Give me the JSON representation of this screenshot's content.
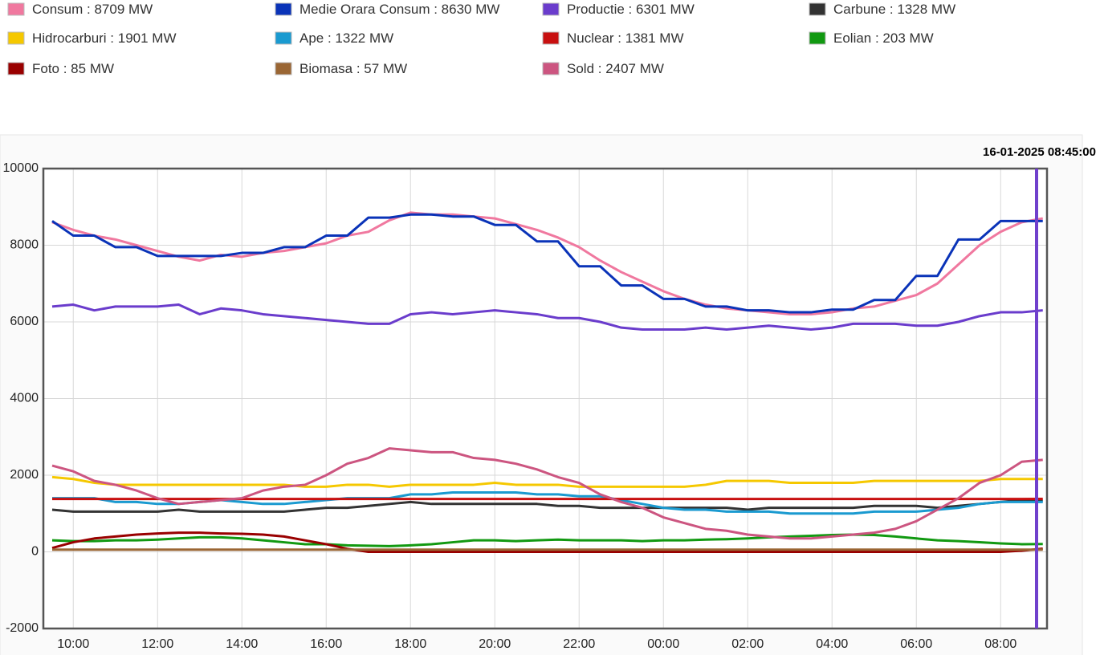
{
  "chart_data": {
    "type": "line",
    "annotation": "16-01-2025 08:45:00",
    "categories": [
      null,
      "10:00",
      null,
      null,
      null,
      "12:00",
      null,
      null,
      null,
      "14:00",
      null,
      null,
      null,
      "16:00",
      null,
      null,
      null,
      "18:00",
      null,
      null,
      null,
      "20:00",
      null,
      null,
      null,
      "22:00",
      null,
      null,
      null,
      "00:00",
      null,
      null,
      null,
      "02:00",
      null,
      null,
      null,
      "04:00",
      null,
      null,
      null,
      "06:00",
      null,
      null,
      null,
      "08:00",
      null,
      null
    ],
    "ylim": [
      -2000,
      10000
    ],
    "yticks": [
      -2000,
      0,
      2000,
      4000,
      6000,
      8000,
      10000
    ],
    "grid": true,
    "series": [
      {
        "name": "Consum : 8709 MW",
        "color": "#f0789f",
        "values": [
          8600,
          8400,
          8250,
          8150,
          8000,
          7850,
          7700,
          7600,
          7750,
          7700,
          7800,
          7850,
          7950,
          8050,
          8250,
          8350,
          8650,
          8850,
          8800,
          8800,
          8750,
          8700,
          8550,
          8400,
          8200,
          7950,
          7600,
          7300,
          7050,
          6800,
          6600,
          6450,
          6350,
          6300,
          6250,
          6200,
          6200,
          6250,
          6350,
          6400,
          6550,
          6700,
          7000,
          7500,
          8000,
          8350,
          8600,
          8700
        ]
      },
      {
        "name": "Medie Orara Consum : 8630 MW",
        "color": "#0a33b8",
        "values": [
          8630,
          8250,
          8250,
          7950,
          7950,
          7720,
          7720,
          7720,
          7720,
          7800,
          7800,
          7950,
          7950,
          8250,
          8250,
          8720,
          8720,
          8800,
          8800,
          8750,
          8750,
          8530,
          8530,
          8100,
          8100,
          7450,
          7450,
          6950,
          6950,
          6600,
          6600,
          6400,
          6400,
          6300,
          6300,
          6250,
          6250,
          6320,
          6320,
          6570,
          6570,
          7200,
          7200,
          8150,
          8150,
          8630,
          8630,
          8630
        ]
      },
      {
        "name": "Productie : 6301 MW",
        "color": "#6a3ccc",
        "values": [
          6400,
          6450,
          6300,
          6400,
          6400,
          6400,
          6450,
          6200,
          6350,
          6300,
          6200,
          6150,
          6100,
          6050,
          6000,
          5950,
          5950,
          6200,
          6250,
          6200,
          6250,
          6300,
          6250,
          6200,
          6100,
          6100,
          6000,
          5850,
          5800,
          5800,
          5800,
          5850,
          5800,
          5850,
          5900,
          5850,
          5800,
          5850,
          5950,
          5950,
          5950,
          5900,
          5900,
          6000,
          6150,
          6250,
          6250,
          6300
        ]
      },
      {
        "name": "Carbune : 1328 MW",
        "color": "#333333",
        "values": [
          1100,
          1050,
          1050,
          1050,
          1050,
          1050,
          1100,
          1050,
          1050,
          1050,
          1050,
          1050,
          1100,
          1150,
          1150,
          1200,
          1250,
          1300,
          1250,
          1250,
          1250,
          1250,
          1250,
          1250,
          1200,
          1200,
          1150,
          1150,
          1150,
          1150,
          1150,
          1150,
          1150,
          1100,
          1150,
          1150,
          1150,
          1150,
          1150,
          1200,
          1200,
          1200,
          1150,
          1200,
          1250,
          1300,
          1350,
          1330
        ]
      },
      {
        "name": "Hidrocarburi : 1901 MW",
        "color": "#f5c800",
        "values": [
          1950,
          1900,
          1800,
          1750,
          1750,
          1750,
          1750,
          1750,
          1750,
          1750,
          1750,
          1750,
          1700,
          1700,
          1750,
          1750,
          1700,
          1750,
          1750,
          1750,
          1750,
          1800,
          1750,
          1750,
          1750,
          1700,
          1700,
          1700,
          1700,
          1700,
          1700,
          1750,
          1850,
          1850,
          1850,
          1800,
          1800,
          1800,
          1800,
          1850,
          1850,
          1850,
          1850,
          1850,
          1850,
          1900,
          1900,
          1900
        ]
      },
      {
        "name": "Ape : 1322 MW",
        "color": "#1a9ad0",
        "values": [
          1400,
          1400,
          1400,
          1300,
          1300,
          1250,
          1250,
          1300,
          1350,
          1300,
          1250,
          1250,
          1300,
          1350,
          1400,
          1400,
          1400,
          1500,
          1500,
          1550,
          1550,
          1550,
          1550,
          1500,
          1500,
          1450,
          1450,
          1350,
          1250,
          1150,
          1100,
          1100,
          1050,
          1050,
          1050,
          1000,
          1000,
          1000,
          1000,
          1050,
          1050,
          1050,
          1100,
          1150,
          1250,
          1300,
          1300,
          1300
        ]
      },
      {
        "name": "Nuclear : 1381 MW",
        "color": "#c81010",
        "values": [
          1380,
          1380,
          1380,
          1380,
          1380,
          1380,
          1380,
          1380,
          1380,
          1380,
          1380,
          1380,
          1380,
          1380,
          1380,
          1380,
          1380,
          1380,
          1380,
          1380,
          1380,
          1380,
          1380,
          1380,
          1380,
          1380,
          1380,
          1380,
          1380,
          1380,
          1380,
          1380,
          1380,
          1380,
          1380,
          1380,
          1380,
          1380,
          1380,
          1380,
          1380,
          1380,
          1380,
          1380,
          1380,
          1380,
          1380,
          1381
        ]
      },
      {
        "name": "Eolian : 203 MW",
        "color": "#119911",
        "values": [
          300,
          280,
          280,
          300,
          300,
          320,
          350,
          380,
          380,
          350,
          300,
          250,
          200,
          200,
          170,
          160,
          150,
          170,
          200,
          250,
          300,
          300,
          280,
          300,
          320,
          300,
          300,
          300,
          280,
          300,
          300,
          320,
          330,
          350,
          380,
          400,
          420,
          440,
          450,
          440,
          400,
          350,
          300,
          280,
          250,
          220,
          200,
          203
        ]
      },
      {
        "name": "Foto : 85 MW",
        "color": "#990000",
        "values": [
          100,
          250,
          350,
          400,
          450,
          480,
          500,
          500,
          480,
          470,
          450,
          400,
          300,
          200,
          80,
          0,
          0,
          0,
          0,
          0,
          0,
          0,
          0,
          0,
          0,
          0,
          0,
          0,
          0,
          0,
          0,
          0,
          0,
          0,
          0,
          0,
          0,
          0,
          0,
          0,
          0,
          0,
          0,
          0,
          0,
          0,
          30,
          85
        ]
      },
      {
        "name": "Biomasa : 57 MW",
        "color": "#9a6634",
        "values": [
          57,
          57,
          57,
          57,
          57,
          57,
          57,
          57,
          57,
          57,
          57,
          57,
          57,
          57,
          57,
          57,
          57,
          57,
          57,
          57,
          57,
          57,
          57,
          57,
          57,
          57,
          57,
          57,
          57,
          57,
          57,
          57,
          57,
          57,
          57,
          57,
          57,
          57,
          57,
          57,
          57,
          57,
          57,
          57,
          57,
          57,
          57,
          57
        ]
      },
      {
        "name": "Sold : 2407 MW",
        "color": "#cc5580",
        "values": [
          2250,
          2100,
          1850,
          1750,
          1600,
          1400,
          1250,
          1300,
          1350,
          1400,
          1600,
          1700,
          1750,
          2000,
          2300,
          2450,
          2700,
          2650,
          2600,
          2600,
          2450,
          2400,
          2300,
          2150,
          1950,
          1800,
          1500,
          1300,
          1150,
          900,
          750,
          600,
          550,
          450,
          400,
          350,
          350,
          400,
          450,
          500,
          600,
          800,
          1100,
          1400,
          1800,
          2000,
          2350,
          2400
        ]
      }
    ]
  }
}
